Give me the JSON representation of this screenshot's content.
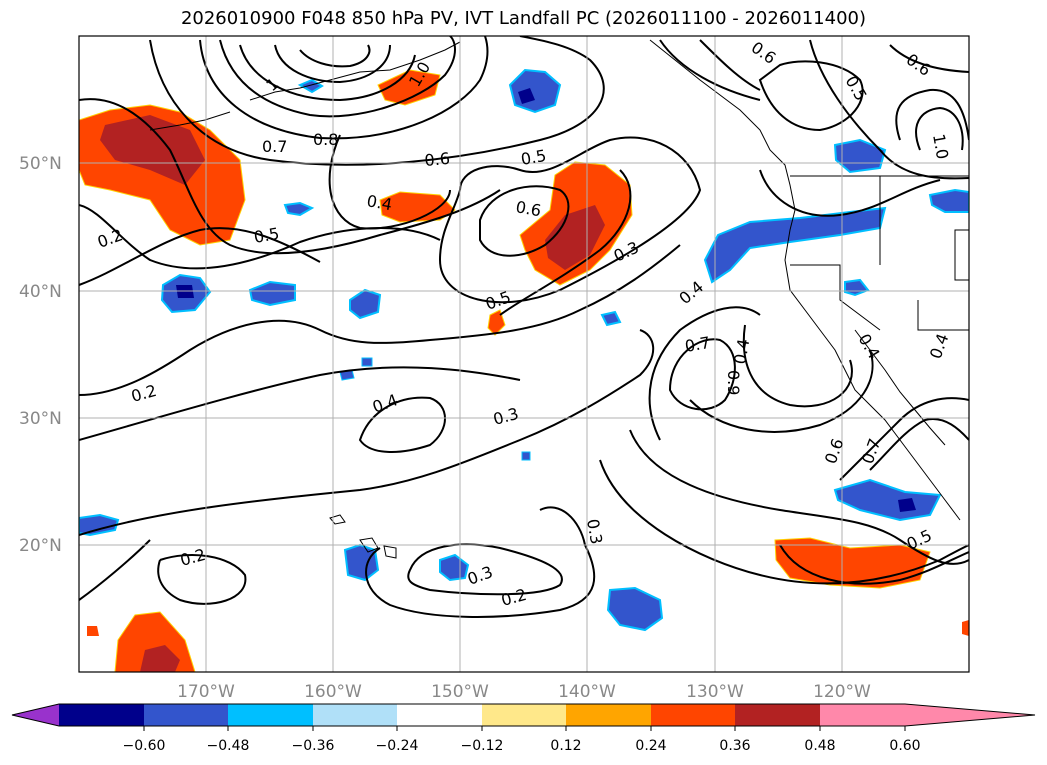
{
  "title": "2026010900 F048 850 hPa PV, IVT Landfall PC (2026011100 - 2026011400)",
  "lat_labels": [
    "50°N",
    "40°N",
    "30°N",
    "20°N"
  ],
  "lon_labels": [
    "170°W",
    "160°W",
    "150°W",
    "140°W",
    "130°W",
    "120°W"
  ],
  "contour_labels": [
    "0.2",
    "0.2",
    "0.2",
    "0.2",
    "0.3",
    "0.3",
    "0.3",
    "0.3",
    "0.4",
    "0.4",
    "0.4",
    "0.4",
    "0.4",
    "0.4",
    "0.5",
    "0.5",
    "0.5",
    "0.5",
    "0.5",
    "0.6",
    "0.6",
    "0.6",
    "0.6",
    "0.6",
    "0.7",
    "0.7",
    "0.7",
    "0.8",
    "0.9",
    "1.0",
    "1.0",
    "1"
  ],
  "colorbar": {
    "tick_labels": [
      "−0.60",
      "−0.48",
      "−0.36",
      "−0.24",
      "−0.12",
      "0.12",
      "0.24",
      "0.36",
      "0.48",
      "0.60"
    ],
    "colors": [
      "#9932cc",
      "#00008b",
      "#3355cc",
      "#00bfff",
      "#b0e0f8",
      "#ffffff",
      "#ffe88a",
      "#ffa500",
      "#ff4500",
      "#b22222",
      "#ff88aa"
    ]
  },
  "colors": {
    "negative_fill": "#3355cc",
    "positive_fill": "#ff4500",
    "strong_positive": "#b22222",
    "grid": "#b0b0b0"
  }
}
